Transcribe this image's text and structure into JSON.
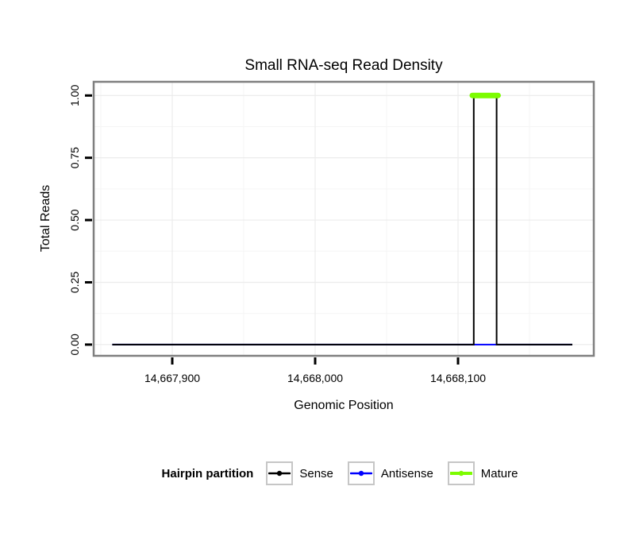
{
  "chart_data": {
    "type": "line",
    "title": "Small RNA-seq Read Density",
    "xlabel": "Genomic Position",
    "ylabel": "Total Reads",
    "xlim": [
      14667845,
      14668195
    ],
    "ylim": [
      -0.045,
      1.055
    ],
    "grid": true,
    "x_ticks": [
      {
        "value": 14667900,
        "label": "14,667,900"
      },
      {
        "value": 14668000,
        "label": "14,668,000"
      },
      {
        "value": 14668100,
        "label": "14,668,100"
      }
    ],
    "x_minor": [
      14667850,
      14667950,
      14668050,
      14668150
    ],
    "y_ticks": [
      {
        "value": 0.0,
        "label": "0.00"
      },
      {
        "value": 0.25,
        "label": "0.25"
      },
      {
        "value": 0.5,
        "label": "0.50"
      },
      {
        "value": 0.75,
        "label": "0.75"
      },
      {
        "value": 1.0,
        "label": "1.00"
      }
    ],
    "y_minor": [
      0.125,
      0.375,
      0.625,
      0.875
    ],
    "legend": {
      "title": "Hairpin partition",
      "position": "bottom",
      "entries": [
        {
          "label": "Sense",
          "color": "#000000",
          "key_line_width": 2.5
        },
        {
          "label": "Antisense",
          "color": "#0000ff",
          "key_line_width": 2.5
        },
        {
          "label": "Mature",
          "color": "#7cfc00",
          "key_line_width": 4
        }
      ]
    },
    "series": [
      {
        "name": "Antisense",
        "color": "#0000ff",
        "width": 2,
        "points": [
          [
            14667858,
            0
          ],
          [
            14668180,
            0
          ]
        ]
      },
      {
        "name": "Sense",
        "color": "#000000",
        "width": 2,
        "points": [
          [
            14667858,
            0
          ],
          [
            14668111,
            0
          ],
          [
            14668111,
            1
          ],
          [
            14668127,
            1
          ],
          [
            14668127,
            0
          ],
          [
            14668180,
            0
          ]
        ]
      },
      {
        "name": "Mature",
        "color": "#7cfc00",
        "width": 7,
        "linecap": "round",
        "points": [
          [
            14668110,
            1
          ],
          [
            14668128,
            1
          ]
        ]
      }
    ]
  },
  "colors": {
    "panel_border": "#7f7f7f",
    "grid_major": "#ececec",
    "grid_minor": "#f5f5f5",
    "tick": "#000000"
  }
}
